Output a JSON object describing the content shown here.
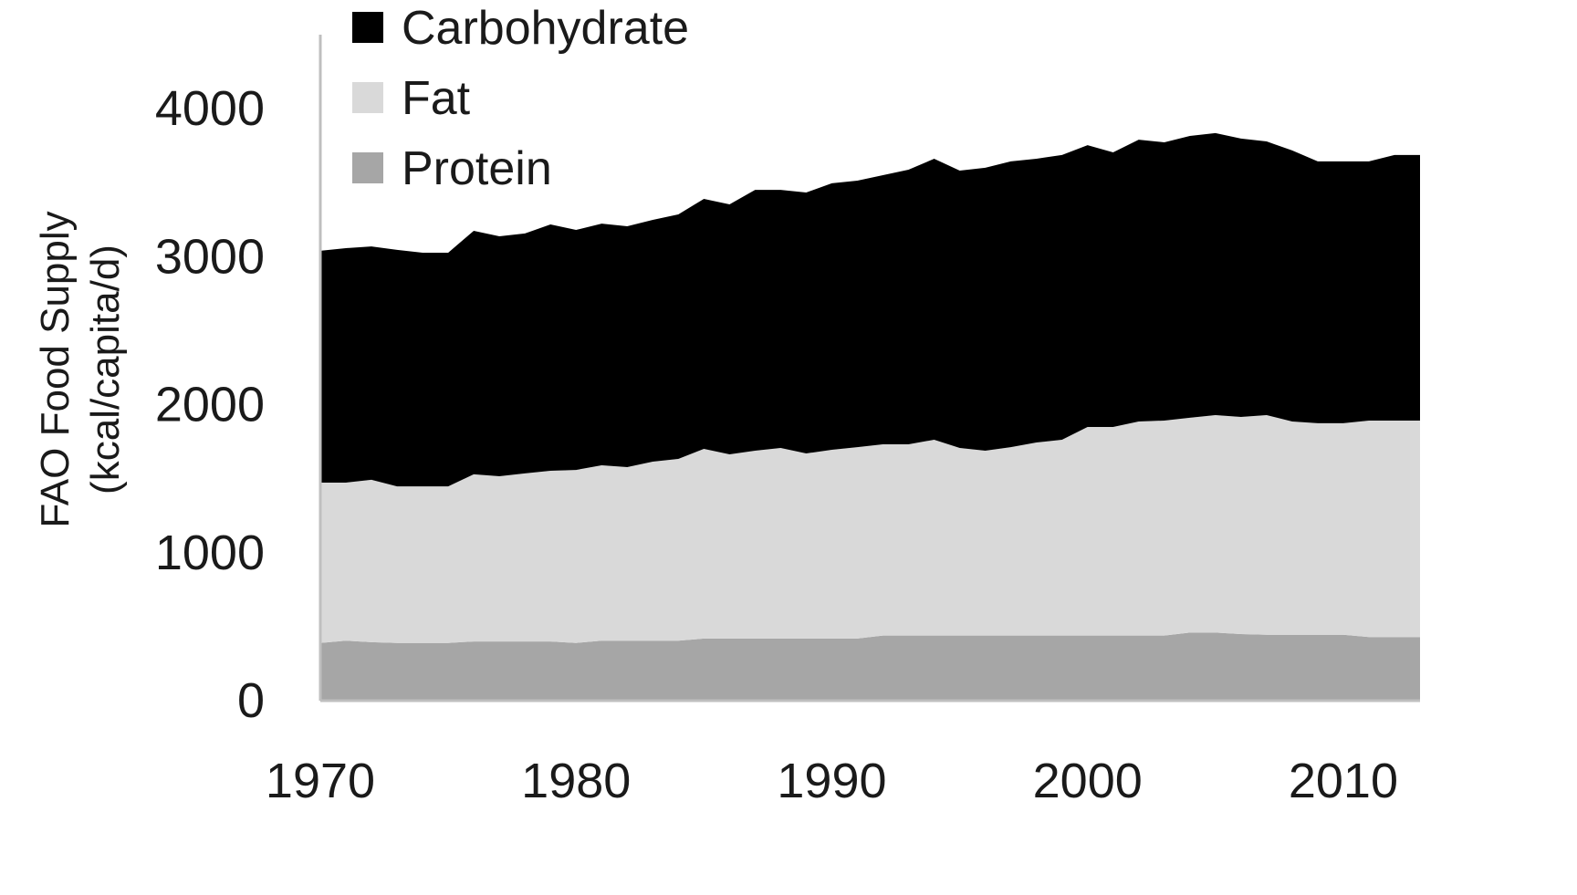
{
  "chart_data": {
    "type": "area",
    "stacked": true,
    "title": "",
    "xlabel": "",
    "ylabel": [
      "FAO Food Supply",
      "(kcal/capita/d)"
    ],
    "xlim": [
      1970,
      2013
    ],
    "ylim": [
      0,
      4000
    ],
    "x_ticks": [
      "1970",
      "1980",
      "1990",
      "2000",
      "2010"
    ],
    "y_ticks": [
      "0",
      "1000",
      "2000",
      "3000",
      "4000"
    ],
    "grid": false,
    "legend_position": "top-left",
    "x": [
      1970,
      1971,
      1972,
      1973,
      1974,
      1975,
      1976,
      1977,
      1978,
      1979,
      1980,
      1981,
      1982,
      1983,
      1984,
      1985,
      1986,
      1987,
      1988,
      1989,
      1990,
      1991,
      1992,
      1993,
      1994,
      1995,
      1996,
      1997,
      1998,
      1999,
      2000,
      2001,
      2002,
      2003,
      2004,
      2005,
      2006,
      2007,
      2008,
      2009,
      2010,
      2011,
      2012,
      2013
    ],
    "series": [
      {
        "name": "Protein",
        "color": "#a6a6a6",
        "values": [
          390,
          405,
          395,
          390,
          390,
          390,
          400,
          400,
          400,
          400,
          390,
          405,
          405,
          405,
          405,
          420,
          420,
          420,
          420,
          420,
          420,
          420,
          440,
          440,
          440,
          440,
          440,
          440,
          440,
          440,
          440,
          440,
          440,
          440,
          460,
          460,
          450,
          445,
          445,
          445,
          445,
          430,
          430,
          430
        ]
      },
      {
        "name": "Fat",
        "color": "#d9d9d9",
        "values": [
          1083,
          1068,
          1097,
          1058,
          1058,
          1058,
          1129,
          1116,
          1135,
          1153,
          1169,
          1185,
          1173,
          1210,
          1228,
          1281,
          1244,
          1269,
          1287,
          1250,
          1275,
          1293,
          1292,
          1292,
          1323,
          1267,
          1249,
          1273,
          1304,
          1323,
          1409,
          1409,
          1446,
          1452,
          1451,
          1469,
          1467,
          1484,
          1441,
          1429,
          1429,
          1462,
          1462,
          1462
        ]
      },
      {
        "name": "Carbohydrate",
        "color": "#000000",
        "values": [
          1566,
          1584,
          1577,
          1597,
          1578,
          1578,
          1645,
          1621,
          1621,
          1664,
          1621,
          1633,
          1627,
          1633,
          1652,
          1689,
          1689,
          1762,
          1744,
          1763,
          1800,
          1800,
          1818,
          1855,
          1898,
          1874,
          1911,
          1930,
          1917,
          1923,
          1904,
          1855,
          1904,
          1880,
          1904,
          1905,
          1880,
          1849,
          1831,
          1769,
          1769,
          1751,
          1794,
          1794
        ]
      }
    ],
    "legend_order": [
      "Carbohydrate",
      "Fat",
      "Protein"
    ]
  }
}
